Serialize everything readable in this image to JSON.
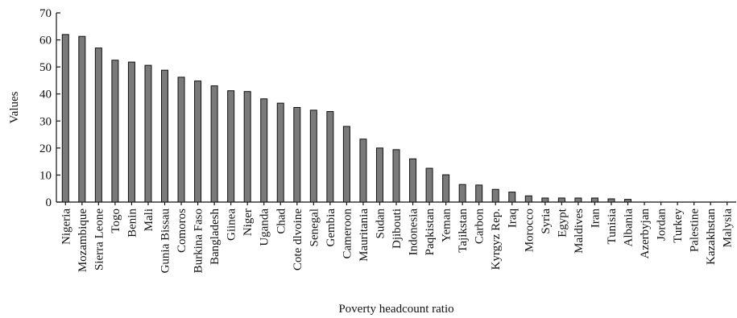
{
  "chart_data": {
    "type": "bar",
    "title": "",
    "xlabel": "Poverty headcount ratio",
    "ylabel": "Values",
    "ylim": [
      0,
      70
    ],
    "yticks": [
      0,
      10,
      20,
      30,
      40,
      50,
      60,
      70
    ],
    "grid": false,
    "bar_color": "#7a7a7a",
    "categories": [
      "Nigeria",
      "Mozambique",
      "Sierra Leone",
      "Togo",
      "Benin",
      "Mali",
      "Gunia Bissau",
      "Comoros",
      "Burkina Faso",
      "Bangladesh",
      "Giinea",
      "Niger",
      "Uganda",
      "Chad",
      "Cote dlvoine",
      "Senegal",
      "Gembia",
      "Cameroon",
      "Mauritania",
      "Sudan",
      "Djibouti",
      "Indonesia",
      "Paqkistan",
      "Yeman",
      "Tajikstan",
      "Carbon",
      "Kyrgyz Rep.",
      "Iraq",
      "Morocco",
      "Syria",
      "Egypt",
      "Maldives",
      "Iran",
      "Tunisia",
      "Albania",
      "Azerbyjan",
      "Jordan",
      "Turkey",
      "Palestine",
      "Kazakhstan",
      "Malysia"
    ],
    "values": [
      62,
      61.3,
      57,
      52.5,
      51.8,
      50.6,
      48.8,
      46.2,
      44.8,
      43,
      41.2,
      40.9,
      38.2,
      36.6,
      35,
      34,
      33.5,
      28,
      23.3,
      20,
      19.4,
      16,
      12.5,
      10.1,
      6.5,
      6.3,
      4.7,
      3.7,
      2.3,
      1.5,
      1.5,
      1.5,
      1.5,
      1.2,
      1.0,
      0,
      0,
      0,
      0,
      0,
      0
    ]
  }
}
